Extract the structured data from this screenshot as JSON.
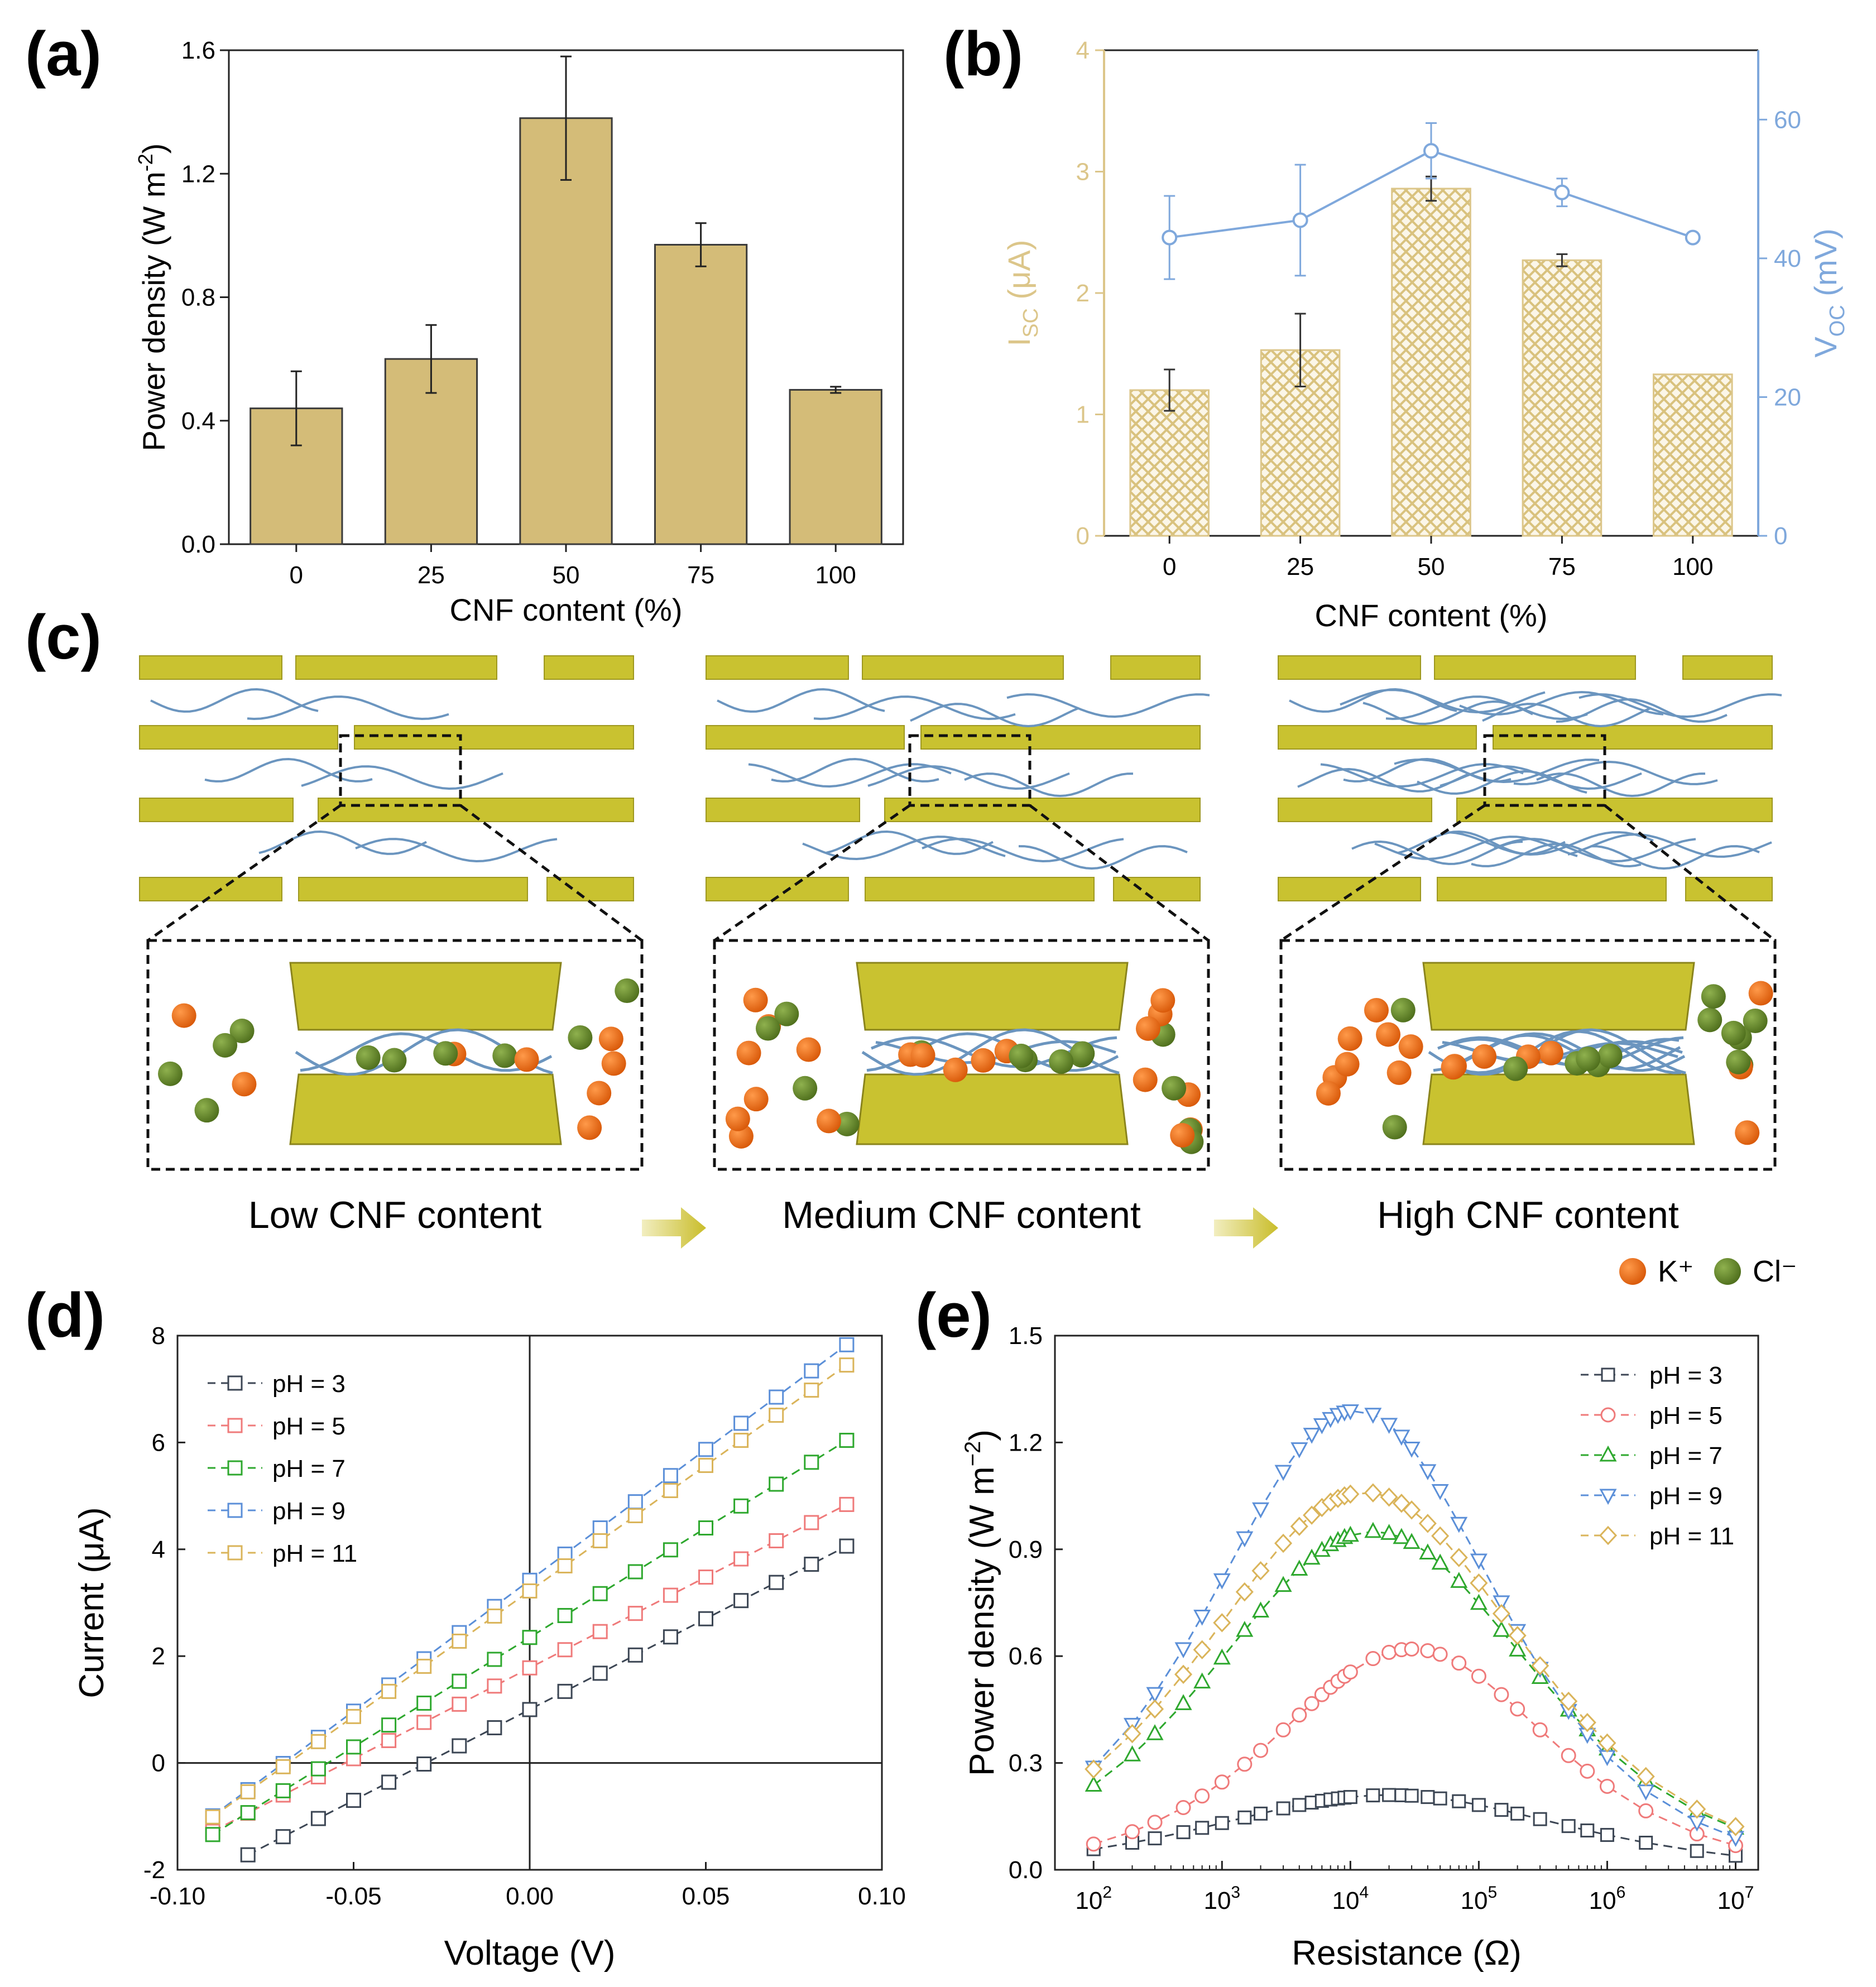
{
  "panels": {
    "a": "(a)",
    "b": "(b)",
    "c": "(c)",
    "d": "(d)",
    "e": "(e)"
  },
  "colors": {
    "bar_fill": "#d4bc78",
    "bar_stroke": "#3a3a3a",
    "hatch": "#dcc68a",
    "voc": "#7fa8dc",
    "layer": "#c9c230",
    "fiber": "#6b95bf",
    "k_ion": "#ee6a12",
    "cl_ion": "#668a2c",
    "ph3": "#3c4654",
    "ph5": "#ef7a7a",
    "ph7": "#2ea82e",
    "ph9": "#5b8fd8",
    "ph11": "#dab45a"
  },
  "chart_data": [
    {
      "id": "a",
      "type": "bar",
      "title": "",
      "categories": [
        "0",
        "25",
        "50",
        "75",
        "100"
      ],
      "values": [
        0.44,
        0.6,
        1.38,
        0.97,
        0.5
      ],
      "errors": [
        0.12,
        0.11,
        0.2,
        0.07,
        0.01
      ],
      "ylim": [
        0,
        1.6
      ],
      "yticks": [
        "0.0",
        "0.4",
        "0.8",
        "1.2",
        "1.6"
      ],
      "xlabel": "CNF content (%)",
      "ylabel": "Power density (W m-2)",
      "ylabel_main": "Power density (W m",
      "ylabel_sup": "-2",
      "ylabel_end": ")"
    },
    {
      "id": "b",
      "type": "bar+line",
      "categories": [
        "0",
        "25",
        "50",
        "75",
        "100"
      ],
      "bars": {
        "name": "ISC (μA)",
        "values": [
          1.2,
          1.53,
          2.86,
          2.27,
          1.33
        ],
        "errors": [
          0.17,
          0.3,
          0.1,
          0.05,
          0.0
        ],
        "ylim": [
          0,
          4
        ],
        "yticks": [
          "0",
          "1",
          "2",
          "3",
          "4"
        ]
      },
      "line": {
        "name": "VOC (mV)",
        "values": [
          43,
          45.5,
          55.5,
          49.5,
          43
        ],
        "errors": [
          6,
          8,
          4,
          2,
          0
        ],
        "ylim": [
          0,
          70
        ],
        "yticks": [
          "0",
          "20",
          "40",
          "60"
        ]
      },
      "xlabel": "CNF content (%)",
      "ylabel_left": {
        "main": "I",
        "sub": "SC",
        "unit": " (μA)"
      },
      "ylabel_right": {
        "main": "V",
        "sub": "OC",
        "unit": " (mV)"
      }
    },
    {
      "id": "d",
      "type": "line",
      "xlim": [
        -0.1,
        0.1
      ],
      "ylim": [
        -2,
        8
      ],
      "xticks": [
        "-0.10",
        "-0.05",
        "0.00",
        "0.05",
        "0.10"
      ],
      "yticks": [
        "-2",
        "0",
        "2",
        "4",
        "6",
        "8"
      ],
      "xlabel": "Voltage (V)",
      "ylabel": "Current (μA)",
      "series": [
        {
          "name": "pH = 3",
          "intercept": 1.0,
          "slope": 34
        },
        {
          "name": "pH = 5",
          "intercept": 1.78,
          "slope": 34
        },
        {
          "name": "pH = 7",
          "intercept": 2.35,
          "slope": 41
        },
        {
          "name": "pH = 9",
          "intercept": 3.42,
          "slope": 49
        },
        {
          "name": "pH = 11",
          "intercept": 3.22,
          "slope": 47
        }
      ]
    },
    {
      "id": "e",
      "type": "scatter",
      "xscale": "log",
      "xlim": [
        50,
        15000000
      ],
      "ylim": [
        0,
        1.5
      ],
      "xticks": [
        "2",
        "3",
        "4",
        "5",
        "6",
        "7"
      ],
      "xtick_base": "10",
      "yticks": [
        "0.0",
        "0.3",
        "0.6",
        "0.9",
        "1.2",
        "1.5"
      ],
      "xlabel": "Resistance (Ω)",
      "ylabel_main": "Power density (W m",
      "ylabel_sup": "−2",
      "ylabel_end": ")",
      "series": [
        {
          "name": "pH = 3",
          "marker": "square",
          "peak": 0.21,
          "peak_r": 20000,
          "width": 1.05
        },
        {
          "name": "pH = 5",
          "marker": "circle",
          "peak": 0.62,
          "peak_r": 30000,
          "width": 0.82
        },
        {
          "name": "pH = 7",
          "marker": "triangle-up",
          "peak": 0.95,
          "peak_r": 15000,
          "width": 0.95
        },
        {
          "name": "pH = 9",
          "marker": "triangle-down",
          "peak": 1.29,
          "peak_r": 11000,
          "width": 0.85
        },
        {
          "name": "pH = 11",
          "marker": "diamond",
          "peak": 1.06,
          "peak_r": 13000,
          "width": 0.95
        }
      ]
    }
  ],
  "schematic": {
    "captions": [
      "Low CNF content",
      "Medium CNF content",
      "High CNF content"
    ],
    "legend": {
      "k": "K⁺",
      "cl": "Cl⁻"
    }
  }
}
